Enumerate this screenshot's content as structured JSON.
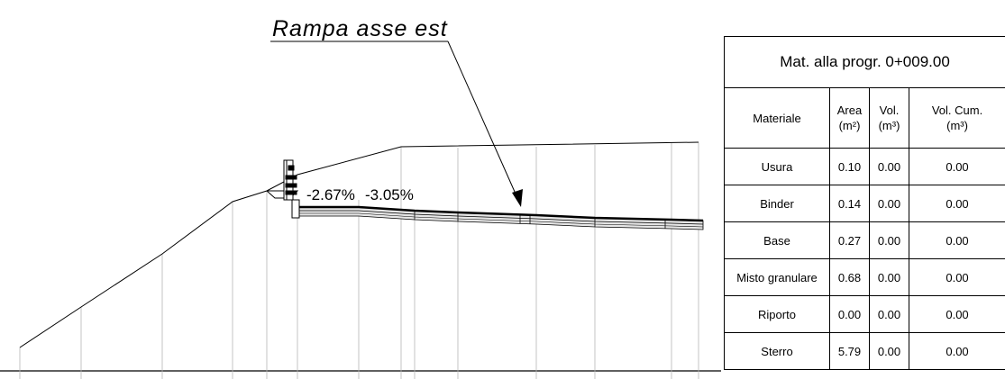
{
  "drawing": {
    "title": "Rampa asse est",
    "slopes": [
      "-2.67%",
      "-3.05%"
    ]
  },
  "table": {
    "title": "Mat. alla progr. 0+009.00",
    "headers": [
      {
        "label": "Materiale",
        "unit": ""
      },
      {
        "label": "Area",
        "unit": "(m²)"
      },
      {
        "label": "Vol.",
        "unit": "(m³)"
      },
      {
        "label": "Vol. Cum.",
        "unit": "(m³)"
      }
    ],
    "rows": [
      {
        "materiale": "Usura",
        "area": "0.10",
        "vol": "0.00",
        "vol_cum": "0.00"
      },
      {
        "materiale": "Binder",
        "area": "0.14",
        "vol": "0.00",
        "vol_cum": "0.00"
      },
      {
        "materiale": "Base",
        "area": "0.27",
        "vol": "0.00",
        "vol_cum": "0.00"
      },
      {
        "materiale": "Misto granulare",
        "area": "0.68",
        "vol": "0.00",
        "vol_cum": "0.00"
      },
      {
        "materiale": "Riporto",
        "area": "0.00",
        "vol": "0.00",
        "vol_cum": "0.00"
      },
      {
        "materiale": "Sterro",
        "area": "5.79",
        "vol": "0.00",
        "vol_cum": "0.00"
      }
    ]
  }
}
